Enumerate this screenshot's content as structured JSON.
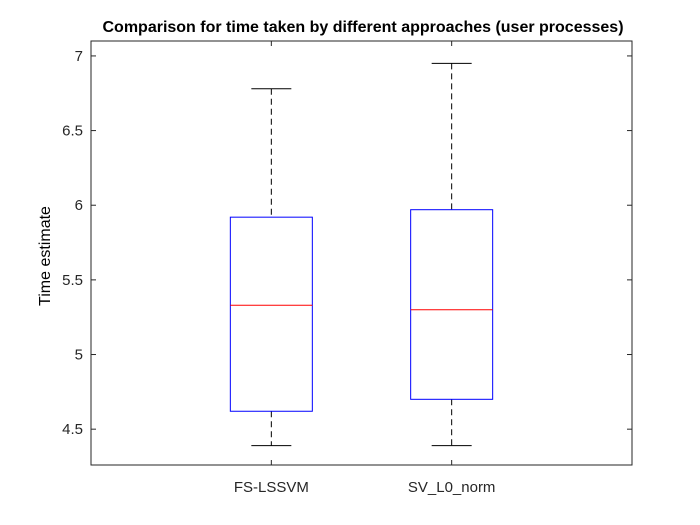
{
  "chart_data": {
    "type": "box",
    "title": "Comparison for time taken by different approaches (user processes)",
    "xlabel": "",
    "ylabel": "Time estimate",
    "ylim": [
      4.26,
      7.1
    ],
    "yticks": [
      4.5,
      5,
      5.5,
      6,
      6.5,
      7
    ],
    "ytick_labels": [
      "4.5",
      "5",
      "5.5",
      "6",
      "6.5",
      "7"
    ],
    "grid": false,
    "categories": [
      "FS-LSSVM",
      "SV_L0_norm"
    ],
    "series": [
      {
        "min": 4.39,
        "q1": 4.62,
        "median": 5.33,
        "q3": 5.92,
        "max": 6.78
      },
      {
        "min": 4.39,
        "q1": 4.7,
        "median": 5.3,
        "q3": 5.97,
        "max": 6.95
      }
    ],
    "colors": {
      "box": "#0000ff",
      "median": "#ff0000",
      "whisker": "#000000",
      "axis": "#262626"
    }
  }
}
